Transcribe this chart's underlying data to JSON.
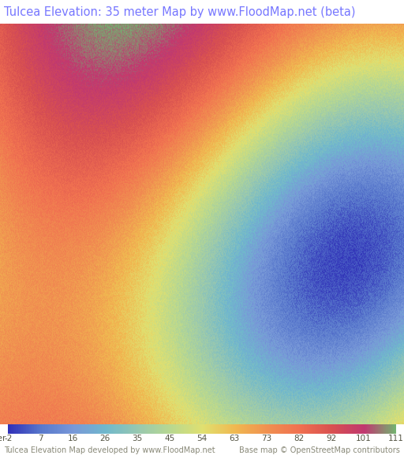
{
  "title": "Tulcea Elevation: 35 meter Map by www.FloodMap.net (beta)",
  "title_color": "#7777ff",
  "title_bg": "#ede8e0",
  "map_bg": "#c8a0c8",
  "colorbar_labels": [
    "-2",
    "7",
    "16",
    "26",
    "35",
    "45",
    "54",
    "63",
    "73",
    "82",
    "92",
    "101",
    "111"
  ],
  "colorbar_values": [
    -2,
    7,
    16,
    26,
    35,
    45,
    54,
    63,
    73,
    82,
    92,
    101,
    111
  ],
  "colorbar_colors": [
    "#4040c0",
    "#6080d0",
    "#80a0e0",
    "#80c0d0",
    "#a0d0c0",
    "#c0e0a0",
    "#e0e080",
    "#f0c060",
    "#f0a060",
    "#f08060",
    "#e06060",
    "#c04080",
    "#80c080"
  ],
  "bottom_left_text": "Tulcea Elevation Map developed by www.FloodMap.net",
  "bottom_right_text": "Base map © OpenStreetMap contributors",
  "bottom_text_color": "#888877",
  "fig_width": 5.12,
  "fig_height": 5.82,
  "dpi": 100
}
